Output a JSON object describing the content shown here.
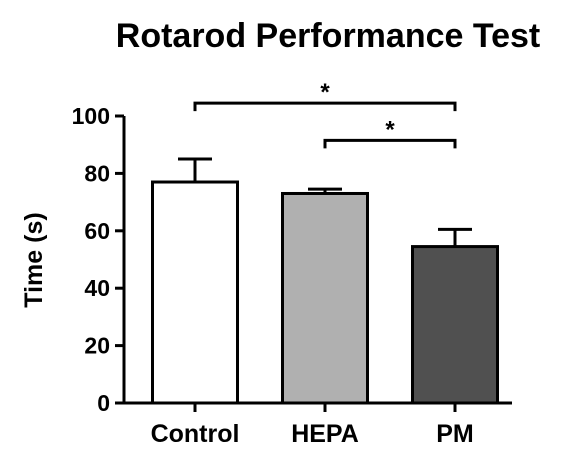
{
  "chart_data": {
    "type": "bar",
    "title": "Rotarod Performance Test",
    "xlabel": "",
    "ylabel": "Time (s)",
    "ylim": [
      0,
      100
    ],
    "yticks": [
      0,
      20,
      40,
      60,
      80,
      100
    ],
    "grid": false,
    "categories": [
      "Control",
      "HEPA",
      "PM"
    ],
    "values": [
      77,
      73,
      54.5
    ],
    "errors": [
      8,
      1.5,
      6
    ],
    "bar_colors": [
      "#ffffff",
      "#b0b0b0",
      "#505050"
    ],
    "significance": [
      {
        "from": 0,
        "to": 2,
        "label": "*",
        "y": 104.5
      },
      {
        "from": 1,
        "to": 2,
        "label": "*",
        "y": 91.5
      }
    ]
  }
}
